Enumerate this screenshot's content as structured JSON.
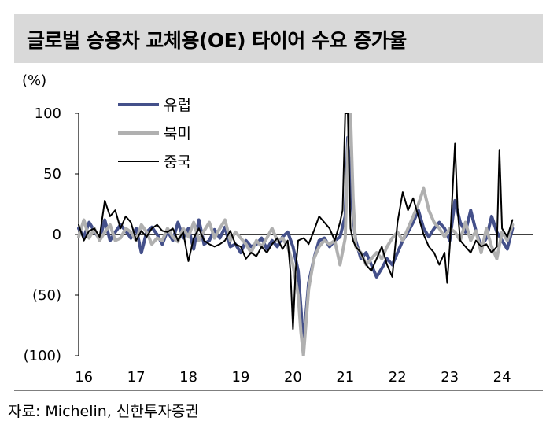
{
  "header": {
    "title": "글로벌 승용차 교체용(OE) 타이어 수요 증가율"
  },
  "unit": "(%)",
  "source": "자료: Michelin, 신한투자증권",
  "chart_data": {
    "type": "line",
    "title": "글로벌 승용차 교체용(OE) 타이어 수요 증가율",
    "ylabel": "(%)",
    "ylim": [
      -100,
      100
    ],
    "yticks": [
      100,
      50,
      0,
      -50,
      -100
    ],
    "ytick_labels": [
      "100",
      "50",
      "0",
      "(50)",
      "(100)"
    ],
    "xlim": [
      2016.0,
      2024.7
    ],
    "xticks": [
      2016,
      2017,
      2018,
      2019,
      2020,
      2021,
      2022,
      2023,
      2024
    ],
    "xtick_labels": [
      "16",
      "17",
      "18",
      "19",
      "20",
      "21",
      "22",
      "23",
      "24"
    ],
    "legend_position": "top-left",
    "series": [
      {
        "name": "유럽",
        "color": "#44508a",
        "width": 4,
        "x": [
          2016.0,
          2016.1,
          2016.2,
          2016.3,
          2016.4,
          2016.5,
          2016.6,
          2016.7,
          2016.8,
          2016.9,
          2017.0,
          2017.1,
          2017.2,
          2017.3,
          2017.4,
          2017.5,
          2017.6,
          2017.7,
          2017.8,
          2017.9,
          2018.0,
          2018.1,
          2018.2,
          2018.3,
          2018.4,
          2018.5,
          2018.6,
          2018.7,
          2018.8,
          2018.9,
          2019.0,
          2019.1,
          2019.2,
          2019.3,
          2019.4,
          2019.5,
          2019.6,
          2019.7,
          2019.8,
          2019.9,
          2020.0,
          2020.1,
          2020.2,
          2020.25,
          2020.3,
          2020.4,
          2020.5,
          2020.6,
          2020.7,
          2020.8,
          2020.9,
          2021.0,
          2021.1,
          2021.15,
          2021.2,
          2021.25,
          2021.3,
          2021.4,
          2021.5,
          2021.6,
          2021.7,
          2021.8,
          2021.9,
          2022.0,
          2022.1,
          2022.2,
          2022.3,
          2022.4,
          2022.5,
          2022.6,
          2022.7,
          2022.8,
          2022.9,
          2023.0,
          2023.1,
          2023.2,
          2023.3,
          2023.4,
          2023.5,
          2023.6,
          2023.7,
          2023.8,
          2023.9,
          2024.0,
          2024.1,
          2024.2,
          2024.3
        ],
        "y": [
          5,
          -2,
          10,
          3,
          -4,
          12,
          -5,
          2,
          8,
          3,
          -3,
          5,
          -15,
          2,
          6,
          0,
          -8,
          3,
          -5,
          10,
          -3,
          5,
          -12,
          12,
          -8,
          -5,
          4,
          -3,
          6,
          -10,
          -8,
          -15,
          -5,
          -10,
          -8,
          -3,
          -12,
          -5,
          -10,
          -2,
          2,
          -10,
          -30,
          -60,
          -90,
          -40,
          -20,
          -5,
          -3,
          -10,
          -5,
          -2,
          15,
          80,
          40,
          15,
          -5,
          -20,
          -15,
          -25,
          -35,
          -28,
          -20,
          -25,
          -15,
          -5,
          2,
          10,
          20,
          5,
          -2,
          5,
          10,
          5,
          -5,
          28,
          10,
          2,
          20,
          3,
          -10,
          -3,
          15,
          2,
          -5,
          -12,
          5
        ]
      },
      {
        "name": "북미",
        "color": "#b0b0b0",
        "width": 4,
        "x": [
          2016.0,
          2016.1,
          2016.2,
          2016.3,
          2016.4,
          2016.5,
          2016.6,
          2016.7,
          2016.8,
          2016.9,
          2017.0,
          2017.1,
          2017.2,
          2017.3,
          2017.4,
          2017.5,
          2017.6,
          2017.7,
          2017.8,
          2017.9,
          2018.0,
          2018.1,
          2018.2,
          2018.3,
          2018.4,
          2018.5,
          2018.6,
          2018.7,
          2018.8,
          2018.9,
          2019.0,
          2019.1,
          2019.2,
          2019.3,
          2019.4,
          2019.5,
          2019.6,
          2019.7,
          2019.8,
          2019.9,
          2020.0,
          2020.1,
          2020.2,
          2020.25,
          2020.3,
          2020.4,
          2020.5,
          2020.6,
          2020.7,
          2020.8,
          2020.9,
          2021.0,
          2021.1,
          2021.15,
          2021.2,
          2021.25,
          2021.3,
          2021.4,
          2021.5,
          2021.6,
          2021.7,
          2021.8,
          2021.9,
          2022.0,
          2022.1,
          2022.2,
          2022.3,
          2022.4,
          2022.5,
          2022.6,
          2022.7,
          2022.8,
          2022.9,
          2023.0,
          2023.1,
          2023.2,
          2023.3,
          2023.4,
          2023.5,
          2023.6,
          2023.7,
          2023.8,
          2023.9,
          2024.0,
          2024.1,
          2024.2,
          2024.3
        ],
        "y": [
          -2,
          12,
          -3,
          5,
          -5,
          2,
          8,
          -5,
          -3,
          5,
          2,
          -5,
          8,
          2,
          -8,
          -3,
          -5,
          5,
          -2,
          -6,
          5,
          -2,
          10,
          -5,
          3,
          10,
          -3,
          5,
          12,
          -5,
          2,
          -3,
          -8,
          -15,
          -5,
          -10,
          -3,
          5,
          -5,
          -3,
          -10,
          -25,
          -50,
          -80,
          -100,
          -45,
          -20,
          -10,
          -5,
          -8,
          -5,
          -25,
          -3,
          70,
          100,
          30,
          -10,
          -15,
          -25,
          -20,
          -15,
          -20,
          -10,
          -3,
          2,
          -5,
          5,
          15,
          25,
          38,
          20,
          10,
          5,
          -2,
          5,
          2,
          -5,
          10,
          -5,
          3,
          -15,
          5,
          -10,
          -20,
          2,
          -5,
          8
        ]
      },
      {
        "name": "중국",
        "color": "#000000",
        "width": 2,
        "x": [
          2016.0,
          2016.1,
          2016.2,
          2016.3,
          2016.4,
          2016.5,
          2016.6,
          2016.7,
          2016.8,
          2016.9,
          2017.0,
          2017.1,
          2017.2,
          2017.3,
          2017.4,
          2017.5,
          2017.6,
          2017.7,
          2017.8,
          2017.9,
          2018.0,
          2018.1,
          2018.2,
          2018.3,
          2018.4,
          2018.5,
          2018.6,
          2018.7,
          2018.8,
          2018.9,
          2019.0,
          2019.1,
          2019.2,
          2019.3,
          2019.4,
          2019.5,
          2019.6,
          2019.7,
          2019.8,
          2019.9,
          2020.0,
          2020.05,
          2020.1,
          2020.15,
          2020.2,
          2020.3,
          2020.35,
          2020.4,
          2020.5,
          2020.6,
          2020.7,
          2020.8,
          2020.9,
          2021.0,
          2021.05,
          2021.1,
          2021.15,
          2021.2,
          2021.25,
          2021.3,
          2021.4,
          2021.5,
          2021.6,
          2021.7,
          2021.8,
          2021.9,
          2022.0,
          2022.1,
          2022.2,
          2022.3,
          2022.4,
          2022.5,
          2022.6,
          2022.7,
          2022.8,
          2022.9,
          2023.0,
          2023.05,
          2023.1,
          2023.2,
          2023.25,
          2023.3,
          2023.4,
          2023.5,
          2023.6,
          2023.7,
          2023.8,
          2023.9,
          2024.0,
          2024.05,
          2024.1,
          2024.2,
          2024.3
        ],
        "y": [
          8,
          -5,
          3,
          5,
          -2,
          28,
          15,
          20,
          5,
          15,
          10,
          -5,
          3,
          -2,
          5,
          8,
          3,
          2,
          5,
          -5,
          2,
          -22,
          -3,
          5,
          -5,
          -8,
          -10,
          -8,
          -5,
          3,
          -8,
          -10,
          -20,
          -15,
          -18,
          -10,
          -15,
          -8,
          -3,
          -12,
          -5,
          -30,
          -78,
          -30,
          -5,
          -3,
          -5,
          -8,
          3,
          15,
          10,
          5,
          -5,
          10,
          20,
          100,
          100,
          5,
          -5,
          -10,
          -15,
          -25,
          -30,
          -20,
          -10,
          -25,
          -35,
          10,
          35,
          20,
          30,
          15,
          0,
          -10,
          -15,
          -25,
          -15,
          -40,
          -10,
          75,
          20,
          -5,
          -10,
          -15,
          -5,
          -10,
          -8,
          -15,
          -10,
          70,
          5,
          -2,
          12
        ]
      }
    ]
  }
}
